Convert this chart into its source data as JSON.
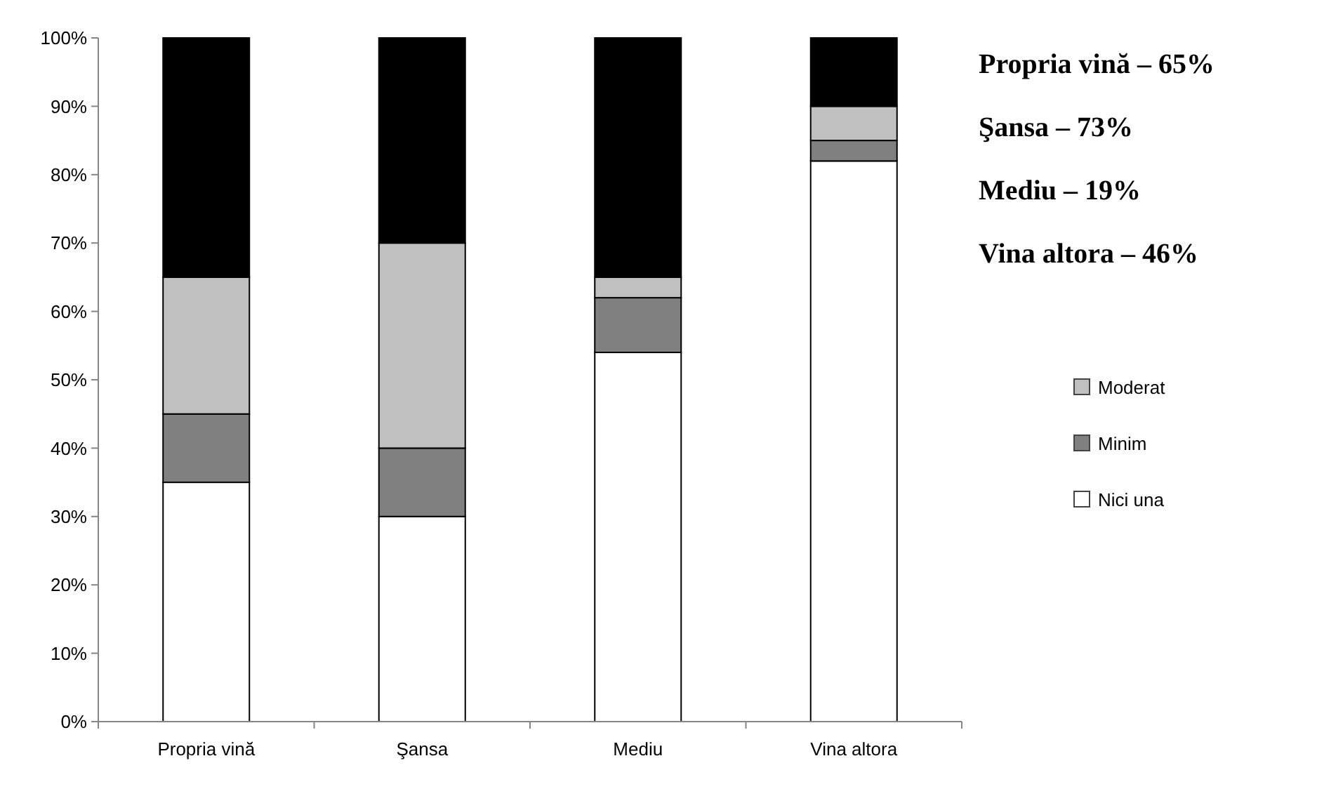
{
  "chart_data": {
    "type": "bar",
    "stacked": true,
    "categories": [
      "Propria vină",
      "Şansa",
      "Mediu",
      "Vina altora"
    ],
    "series": [
      {
        "name": "Nici una",
        "color": "#ffffff",
        "values": [
          35,
          30,
          54,
          82
        ]
      },
      {
        "name": "Minim",
        "color": "#808080",
        "values": [
          10,
          10,
          8,
          3
        ]
      },
      {
        "name": "Moderat",
        "color": "#c0c0c0",
        "values": [
          20,
          30,
          3,
          5
        ]
      },
      {
        "color": "#000000",
        "values": [
          35,
          30,
          35,
          10
        ]
      }
    ],
    "ylim": [
      0,
      100
    ],
    "yticks": [
      {
        "value": 0,
        "label": "0%"
      },
      {
        "value": 10,
        "label": "10%"
      },
      {
        "value": 20,
        "label": "20%"
      },
      {
        "value": 30,
        "label": "30%"
      },
      {
        "value": 40,
        "label": "40%"
      },
      {
        "value": 50,
        "label": "50%"
      },
      {
        "value": 60,
        "label": "60%"
      },
      {
        "value": 70,
        "label": "70%"
      },
      {
        "value": 80,
        "label": "80%"
      },
      {
        "value": 90,
        "label": "90%"
      },
      {
        "value": 100,
        "label": "100%"
      }
    ],
    "grid": false,
    "legend": "right",
    "annotations": [
      "Propria vină – 65%",
      "Şansa – 73%",
      "Mediu – 19%",
      "Vina altora – 46%"
    ]
  }
}
